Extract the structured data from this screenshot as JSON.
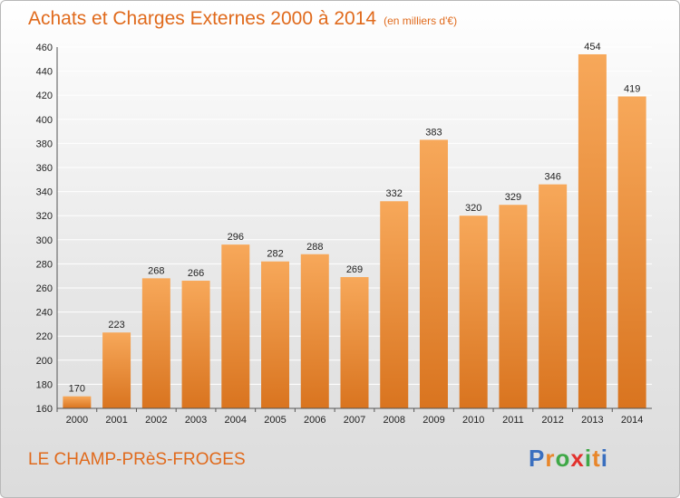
{
  "header": {
    "title": "Achats et Charges Externes 2000 à 2014",
    "unit": "(en milliers d'€)"
  },
  "footer": {
    "commune": "LE CHAMP-PRèS-FROGES",
    "logo_letters": [
      "P",
      "r",
      "o",
      "x",
      "i",
      "t",
      "i"
    ],
    "logo_colors": [
      "#3a6fbf",
      "#e8862a",
      "#3fa847",
      "#e2312d",
      "#3fa847",
      "#e8862a",
      "#3a6fbf"
    ]
  },
  "chart_data": {
    "type": "bar",
    "title": "Achats et Charges Externes 2000 à 2014",
    "subtitle": "(en milliers d'€)",
    "categories": [
      "2000",
      "2001",
      "2002",
      "2003",
      "2004",
      "2005",
      "2006",
      "2007",
      "2008",
      "2009",
      "2010",
      "2011",
      "2012",
      "2013",
      "2014"
    ],
    "values": [
      170,
      223,
      268,
      266,
      296,
      282,
      288,
      269,
      332,
      383,
      320,
      329,
      346,
      454,
      419
    ],
    "ylim": [
      160,
      460
    ],
    "yticks": [
      160,
      180,
      200,
      220,
      240,
      260,
      280,
      300,
      320,
      340,
      360,
      380,
      400,
      420,
      440,
      460
    ],
    "grid": true,
    "bar_color_top": "#f7a85a",
    "bar_color_bottom": "#d9741f",
    "grid_color": "#ffffff"
  }
}
